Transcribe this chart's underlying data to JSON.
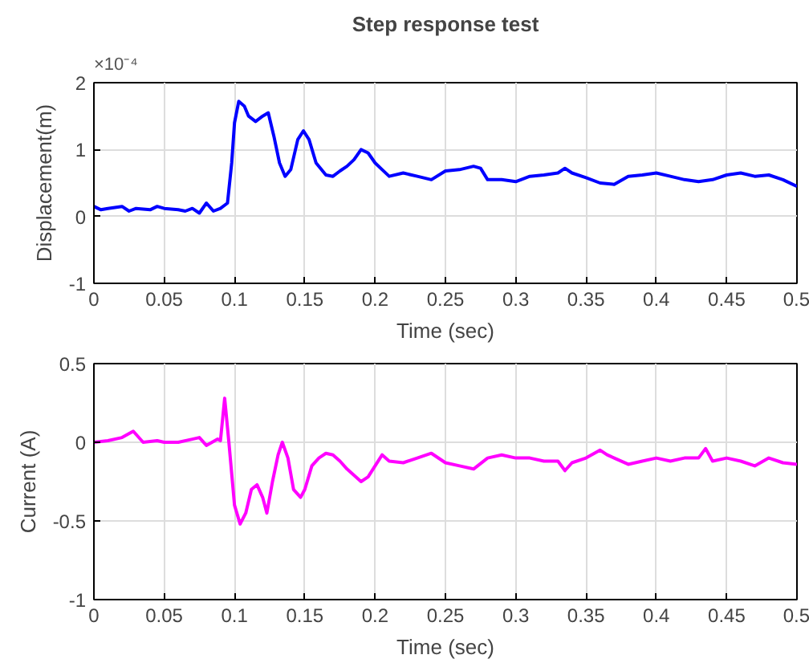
{
  "chart_data": [
    {
      "type": "line",
      "title": "Step response test",
      "xlabel": "Time (sec)",
      "ylabel": "Displacement(m)",
      "annotations": [
        "×10⁻⁴"
      ],
      "xlim": [
        0,
        0.5
      ],
      "xticks": [
        0,
        0.05,
        0.1,
        0.15,
        0.2,
        0.25,
        0.3,
        0.35,
        0.4,
        0.45,
        0.5
      ],
      "ylim": [
        -1,
        2
      ],
      "yticks": [
        -1,
        0,
        1,
        2
      ],
      "grid": true,
      "x": [
        0,
        0.005,
        0.01,
        0.02,
        0.025,
        0.03,
        0.04,
        0.045,
        0.05,
        0.06,
        0.065,
        0.07,
        0.075,
        0.08,
        0.085,
        0.09,
        0.095,
        0.098,
        0.1,
        0.103,
        0.107,
        0.11,
        0.115,
        0.12,
        0.124,
        0.128,
        0.132,
        0.136,
        0.14,
        0.145,
        0.149,
        0.153,
        0.158,
        0.165,
        0.17,
        0.175,
        0.18,
        0.185,
        0.19,
        0.195,
        0.2,
        0.205,
        0.21,
        0.22,
        0.23,
        0.24,
        0.25,
        0.26,
        0.27,
        0.275,
        0.28,
        0.29,
        0.3,
        0.31,
        0.32,
        0.33,
        0.335,
        0.34,
        0.35,
        0.36,
        0.37,
        0.38,
        0.39,
        0.4,
        0.41,
        0.42,
        0.43,
        0.44,
        0.45,
        0.46,
        0.47,
        0.48,
        0.49,
        0.5
      ],
      "series": [
        {
          "color": "#0000ff",
          "values": [
            0.15,
            0.1,
            0.12,
            0.15,
            0.08,
            0.12,
            0.1,
            0.15,
            0.12,
            0.1,
            0.08,
            0.12,
            0.05,
            0.2,
            0.08,
            0.12,
            0.2,
            0.8,
            1.4,
            1.72,
            1.65,
            1.5,
            1.42,
            1.5,
            1.55,
            1.2,
            0.8,
            0.6,
            0.7,
            1.15,
            1.28,
            1.15,
            0.8,
            0.62,
            0.6,
            0.68,
            0.75,
            0.85,
            1.0,
            0.95,
            0.8,
            0.7,
            0.6,
            0.65,
            0.6,
            0.55,
            0.68,
            0.7,
            0.75,
            0.72,
            0.55,
            0.55,
            0.52,
            0.6,
            0.62,
            0.65,
            0.72,
            0.65,
            0.58,
            0.5,
            0.48,
            0.6,
            0.62,
            0.65,
            0.6,
            0.55,
            0.52,
            0.55,
            0.62,
            0.65,
            0.6,
            0.62,
            0.55,
            0.45
          ]
        }
      ]
    },
    {
      "type": "line",
      "xlabel": "Time (sec)",
      "ylabel": "Current (A)",
      "xlim": [
        0,
        0.5
      ],
      "xticks": [
        0,
        0.05,
        0.1,
        0.15,
        0.2,
        0.25,
        0.3,
        0.35,
        0.4,
        0.45,
        0.5
      ],
      "ylim": [
        -1,
        0.5
      ],
      "yticks": [
        -1,
        -0.5,
        0,
        0.5
      ],
      "grid": true,
      "x": [
        0,
        0.01,
        0.02,
        0.028,
        0.035,
        0.045,
        0.05,
        0.06,
        0.07,
        0.075,
        0.08,
        0.088,
        0.09,
        0.093,
        0.096,
        0.1,
        0.104,
        0.108,
        0.112,
        0.116,
        0.12,
        0.123,
        0.127,
        0.131,
        0.134,
        0.138,
        0.142,
        0.147,
        0.15,
        0.155,
        0.16,
        0.165,
        0.17,
        0.175,
        0.18,
        0.19,
        0.195,
        0.2,
        0.205,
        0.21,
        0.22,
        0.23,
        0.24,
        0.25,
        0.26,
        0.27,
        0.28,
        0.29,
        0.3,
        0.31,
        0.32,
        0.33,
        0.335,
        0.34,
        0.35,
        0.36,
        0.365,
        0.37,
        0.38,
        0.39,
        0.4,
        0.41,
        0.42,
        0.43,
        0.435,
        0.44,
        0.45,
        0.46,
        0.47,
        0.48,
        0.49,
        0.5
      ],
      "series": [
        {
          "color": "#ff00ff",
          "values": [
            0,
            0.01,
            0.03,
            0.07,
            0.0,
            0.01,
            0.0,
            0.0,
            0.02,
            0.03,
            -0.02,
            0.02,
            0.01,
            0.28,
            0.0,
            -0.4,
            -0.52,
            -0.45,
            -0.3,
            -0.27,
            -0.35,
            -0.45,
            -0.25,
            -0.08,
            0,
            -0.1,
            -0.3,
            -0.35,
            -0.3,
            -0.15,
            -0.1,
            -0.07,
            -0.08,
            -0.12,
            -0.17,
            -0.25,
            -0.22,
            -0.15,
            -0.08,
            -0.12,
            -0.13,
            -0.1,
            -0.07,
            -0.13,
            -0.15,
            -0.17,
            -0.1,
            -0.08,
            -0.1,
            -0.1,
            -0.12,
            -0.12,
            -0.18,
            -0.13,
            -0.1,
            -0.05,
            -0.08,
            -0.1,
            -0.14,
            -0.12,
            -0.1,
            -0.12,
            -0.1,
            -0.1,
            -0.04,
            -0.12,
            -0.1,
            -0.12,
            -0.15,
            -0.1,
            -0.13,
            -0.14
          ]
        }
      ]
    }
  ]
}
